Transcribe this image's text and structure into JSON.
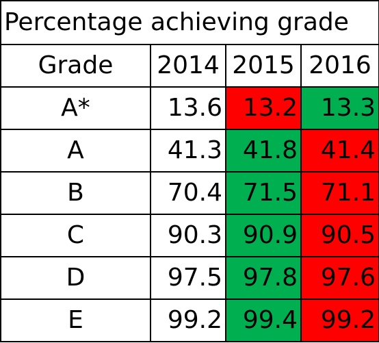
{
  "table": {
    "title": "Percentage achieving grade",
    "header": {
      "grade_label": "Grade",
      "years": [
        "2014",
        "2015",
        "2016"
      ]
    },
    "rows": [
      {
        "grade": "A*",
        "values": [
          "13.6",
          "13.2",
          "13.3"
        ],
        "colors": [
          "#ffffff",
          "#ff0000",
          "#00b050"
        ]
      },
      {
        "grade": "A",
        "values": [
          "41.3",
          "41.8",
          "41.4"
        ],
        "colors": [
          "#ffffff",
          "#00b050",
          "#ff0000"
        ]
      },
      {
        "grade": "B",
        "values": [
          "70.4",
          "71.5",
          "71.1"
        ],
        "colors": [
          "#ffffff",
          "#00b050",
          "#ff0000"
        ]
      },
      {
        "grade": "C",
        "values": [
          "90.3",
          "90.9",
          "90.5"
        ],
        "colors": [
          "#ffffff",
          "#00b050",
          "#ff0000"
        ]
      },
      {
        "grade": "D",
        "values": [
          "97.5",
          "97.8",
          "97.6"
        ],
        "colors": [
          "#ffffff",
          "#00b050",
          "#ff0000"
        ]
      },
      {
        "grade": "E",
        "values": [
          "99.2",
          "99.4",
          "99.2"
        ],
        "colors": [
          "#ffffff",
          "#00b050",
          "#ff0000"
        ]
      }
    ]
  }
}
